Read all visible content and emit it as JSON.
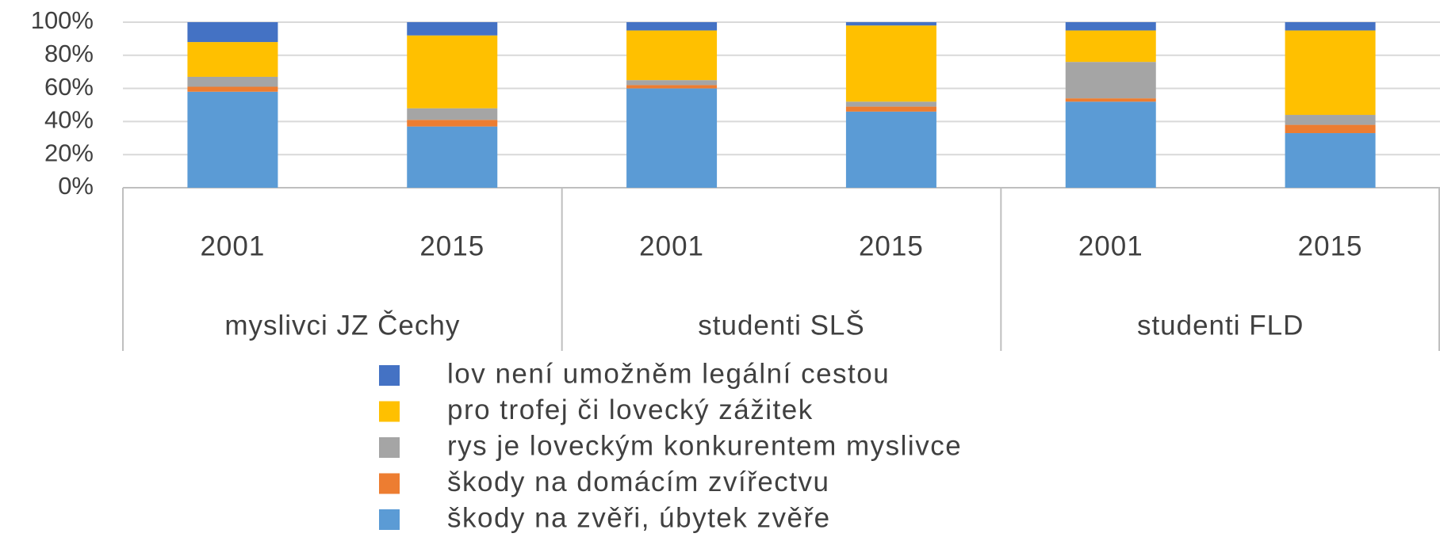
{
  "chart_data": {
    "type": "stacked_bar",
    "categories": [
      "2001",
      "2015",
      "2001",
      "2015",
      "2001",
      "2015"
    ],
    "groups": [
      "myslivci JZ Čechy",
      "studenti SLŠ",
      "studenti FLD"
    ],
    "series": [
      {
        "name": "škody na zvěři, úbytek zvěře",
        "color": "#5b9bd5",
        "values": [
          58,
          37,
          60,
          46,
          52,
          33
        ]
      },
      {
        "name": "škody na domácím zvířectvu",
        "color": "#ed7d31",
        "values": [
          3,
          4,
          2,
          3,
          2,
          5
        ]
      },
      {
        "name": "rys je loveckým konkurentem myslivce",
        "color": "#a5a5a5",
        "values": [
          6,
          7,
          3,
          3,
          22,
          6
        ]
      },
      {
        "name": "pro trofej či lovecký zážitek",
        "color": "#ffc000",
        "values": [
          21,
          44,
          30,
          46,
          19,
          51
        ]
      },
      {
        "name": "lov není umožněm legální cestou",
        "color": "#4472c4",
        "values": [
          12,
          8,
          5,
          2,
          5,
          5
        ]
      }
    ],
    "ylim": [
      0,
      100
    ],
    "yticks": [
      {
        "value": 0,
        "label": "0%"
      },
      {
        "value": 20,
        "label": "20%"
      },
      {
        "value": 40,
        "label": "40%"
      },
      {
        "value": 60,
        "label": "60%"
      },
      {
        "value": 80,
        "label": "80%"
      },
      {
        "value": 100,
        "label": "100%"
      }
    ],
    "grid": true,
    "legend": "bottom"
  }
}
